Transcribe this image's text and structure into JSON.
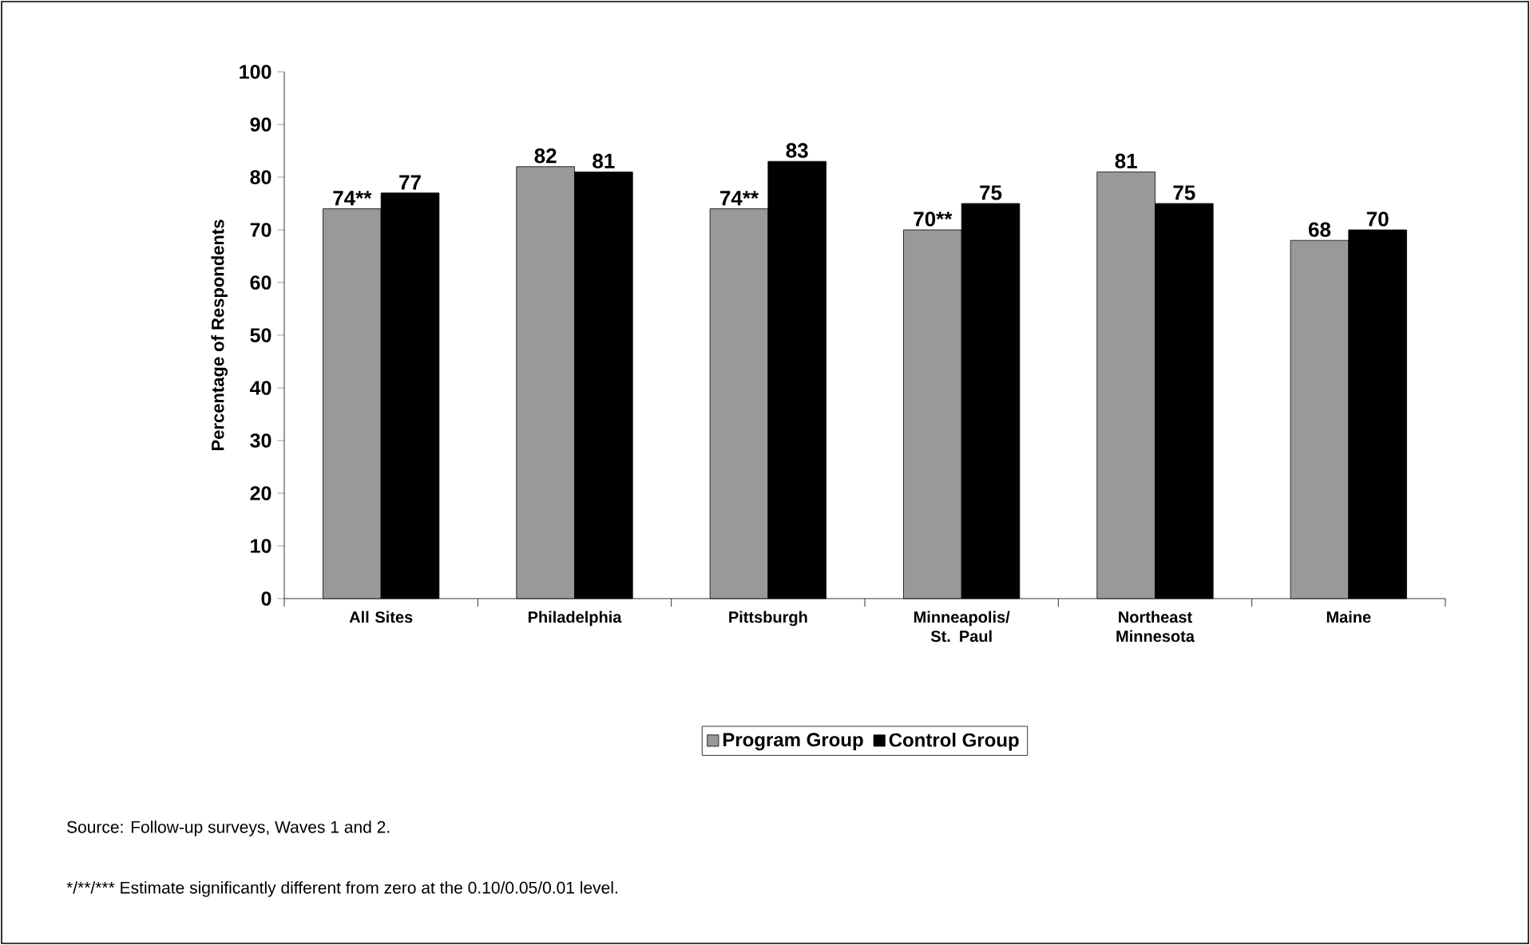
{
  "chart_data": {
    "type": "bar",
    "ylabel": "Percentage of Respondents",
    "categories": [
      "All Sites",
      "Philadelphia",
      "Pittsburgh",
      "Minneapolis/ St. Paul",
      "Northeast Minnesota",
      "Maine"
    ],
    "series": [
      {
        "name": "Program Group",
        "color": "#999999",
        "values": [
          74,
          82,
          74,
          70,
          81,
          68
        ],
        "value_labels": [
          "74**",
          "82",
          "74**",
          "70**",
          "81",
          "68"
        ]
      },
      {
        "name": "Control Group",
        "color": "#000000",
        "values": [
          77,
          81,
          83,
          75,
          75,
          70
        ],
        "value_labels": [
          "77",
          "81",
          "83",
          "75",
          "75",
          "70"
        ]
      }
    ],
    "ylim": [
      0,
      100
    ],
    "yticks": [
      0,
      10,
      20,
      30,
      40,
      50,
      60,
      70,
      80,
      90,
      100
    ],
    "grid": false,
    "legend": "bottom",
    "annotations": [
      "Source: Follow-up surveys, Waves 1 and 2.",
      "*/**/***  Estimate significantly different from zero at the 0.10/0.05/0.01 level."
    ]
  }
}
